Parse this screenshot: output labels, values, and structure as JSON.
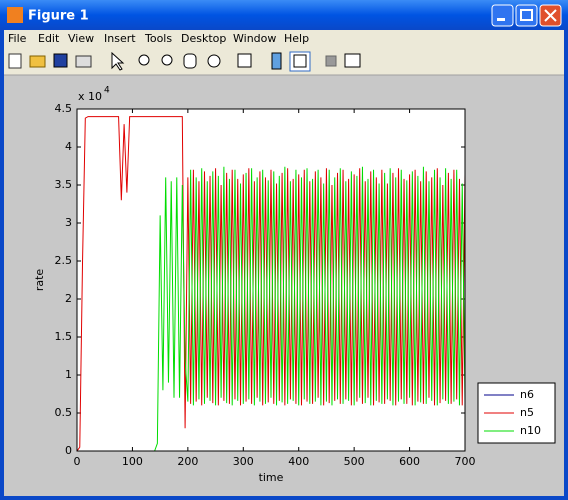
{
  "window": {
    "title": "Figure 1"
  },
  "menu": [
    "File",
    "Edit",
    "View",
    "Insert",
    "Tools",
    "Desktop",
    "Window",
    "Help"
  ],
  "chart_data": {
    "type": "line",
    "xlabel": "time",
    "ylabel": "rate",
    "y_multiplier": {
      "base": "x 10",
      "exponent": "4"
    },
    "xlim": [
      0,
      700
    ],
    "xticks": [
      0,
      100,
      200,
      300,
      400,
      500,
      600,
      700
    ],
    "ylim": [
      0,
      4.5
    ],
    "yticks": [
      0,
      0.5,
      1,
      1.5,
      2,
      2.5,
      3,
      3.5,
      4,
      4.5
    ],
    "legend": "lower right",
    "x": [
      0,
      5,
      10,
      15,
      20,
      25,
      30,
      35,
      40,
      45,
      50,
      55,
      60,
      65,
      70,
      75,
      80,
      85,
      90,
      95,
      100,
      105,
      110,
      115,
      120,
      125,
      130,
      135,
      140,
      145,
      150,
      155,
      160,
      165,
      170,
      175,
      180,
      185,
      190,
      195,
      200,
      205,
      210,
      215,
      220,
      225,
      230,
      235,
      240,
      245,
      250,
      255,
      260,
      265,
      270,
      275,
      280,
      285,
      290,
      295,
      300,
      305,
      310,
      315,
      320,
      325,
      330,
      335,
      340,
      345,
      350,
      355,
      360,
      365,
      370,
      375,
      380,
      385,
      390,
      395,
      400,
      405,
      410,
      415,
      420,
      425,
      430,
      435,
      440,
      445,
      450,
      455,
      460,
      465,
      470,
      475,
      480,
      485,
      490,
      495,
      500,
      505,
      510,
      515,
      520,
      525,
      530,
      535,
      540,
      545,
      550,
      555,
      560,
      565,
      570,
      575,
      580,
      585,
      590,
      595,
      600,
      605,
      610,
      615,
      620,
      625,
      630,
      635,
      640,
      645,
      650,
      655,
      660,
      665,
      670,
      675,
      680,
      685,
      690,
      695,
      700
    ],
    "series": [
      {
        "name": "n6",
        "color": "#00008b",
        "values": [
          0,
          0,
          0,
          0,
          0,
          0,
          0,
          0,
          0,
          0,
          0,
          0,
          0,
          0,
          0,
          0,
          0,
          0,
          0,
          0,
          0,
          0,
          0,
          0,
          0,
          0,
          0,
          0,
          0,
          0,
          0,
          0,
          0,
          0,
          0,
          0,
          0,
          0,
          0,
          0,
          0,
          0,
          0,
          0,
          0,
          0,
          0,
          0,
          0,
          0,
          0,
          0,
          0,
          0,
          0,
          0,
          0,
          0,
          0,
          0,
          0,
          0,
          0,
          0,
          0,
          0,
          0,
          0,
          0,
          0,
          0,
          0,
          0,
          0,
          0,
          0,
          0,
          0,
          0,
          0,
          0,
          0,
          0,
          0,
          0,
          0,
          0,
          0,
          0,
          0,
          0,
          0,
          0,
          0,
          0,
          0,
          0,
          0,
          0,
          0,
          0,
          0,
          0,
          0,
          0,
          0,
          0,
          0,
          0,
          0,
          0,
          0,
          0,
          0,
          0,
          0,
          0,
          0,
          0,
          0,
          0,
          0,
          0,
          0,
          0,
          0,
          0,
          0,
          0,
          0,
          0,
          0,
          0,
          0,
          0,
          0,
          0,
          0,
          0,
          0,
          0
        ]
      },
      {
        "name": "n5",
        "color": "#e00000",
        "values": [
          0,
          0.05,
          2.5,
          4.38,
          4.4,
          4.4,
          4.4,
          4.4,
          4.4,
          4.4,
          4.4,
          4.4,
          4.4,
          4.4,
          4.4,
          4.4,
          3.3,
          4.3,
          3.4,
          4.4,
          4.4,
          4.4,
          4.4,
          4.4,
          4.4,
          4.4,
          4.4,
          4.4,
          4.4,
          4.4,
          4.4,
          4.4,
          4.4,
          4.4,
          4.4,
          4.4,
          4.4,
          4.4,
          4.4,
          0.3,
          3.6,
          0.62,
          3.7,
          0.65,
          3.55,
          0.6,
          3.68,
          0.7,
          3.62,
          0.63,
          3.72,
          0.6,
          3.5,
          0.66,
          3.66,
          0.62,
          3.7,
          0.68,
          3.58,
          0.6,
          3.64,
          0.65,
          3.72,
          0.62,
          3.55,
          0.7,
          3.68,
          0.6,
          3.6,
          0.64,
          3.7,
          0.62,
          3.52,
          0.66,
          3.66,
          0.6,
          3.72,
          0.68,
          3.58,
          0.62,
          3.64,
          0.6,
          3.7,
          0.65,
          3.55,
          0.62,
          3.68,
          0.7,
          3.6,
          0.6,
          3.72,
          0.63,
          3.5,
          0.66,
          3.66,
          0.62,
          3.7,
          0.68,
          3.58,
          0.6,
          3.64,
          0.65,
          3.72,
          0.62,
          3.55,
          0.7,
          3.68,
          0.6,
          3.6,
          0.64,
          3.7,
          0.62,
          3.52,
          0.66,
          3.66,
          0.6,
          3.72,
          0.68,
          3.58,
          0.62,
          3.64,
          0.6,
          3.7,
          0.65,
          3.55,
          0.62,
          3.68,
          0.7,
          3.6,
          0.6,
          3.72,
          0.63,
          3.5,
          0.66,
          3.66,
          0.62,
          3.7,
          0.68,
          3.58,
          0.6,
          3.64
        ]
      },
      {
        "name": "n10",
        "color": "#00dd00",
        "values": [
          0,
          0,
          0,
          0,
          0,
          0,
          0,
          0,
          0,
          0,
          0,
          0,
          0,
          0,
          0,
          0,
          0,
          0,
          0,
          0,
          0,
          0,
          0,
          0,
          0,
          0,
          0,
          0,
          0,
          0.1,
          3.1,
          0.8,
          3.6,
          0.9,
          3.55,
          0.7,
          3.6,
          0.7,
          3.5,
          1.2,
          0.65,
          3.7,
          0.6,
          3.6,
          0.68,
          3.72,
          0.62,
          3.55,
          0.66,
          3.68,
          0.6,
          3.62,
          0.7,
          3.74,
          0.63,
          3.58,
          0.6,
          3.7,
          0.66,
          3.52,
          0.62,
          3.66,
          0.68,
          3.72,
          0.6,
          3.6,
          0.65,
          3.7,
          0.62,
          3.56,
          0.7,
          3.68,
          0.6,
          3.62,
          0.64,
          3.74,
          0.62,
          3.55,
          0.66,
          3.7,
          0.6,
          3.6,
          0.68,
          3.72,
          0.62,
          3.58,
          0.65,
          3.7,
          0.6,
          3.52,
          0.65,
          3.7,
          0.6,
          3.6,
          0.68,
          3.72,
          0.62,
          3.55,
          0.66,
          3.68,
          0.6,
          3.62,
          0.7,
          3.74,
          0.63,
          3.58,
          0.6,
          3.7,
          0.66,
          3.52,
          0.62,
          3.66,
          0.68,
          3.72,
          0.6,
          3.6,
          0.65,
          3.7,
          0.62,
          3.56,
          0.7,
          3.68,
          0.6,
          3.62,
          0.64,
          3.74,
          0.62,
          3.55,
          0.66,
          3.7,
          0.6,
          3.6,
          0.68,
          3.72,
          0.62,
          3.58,
          0.65,
          3.7,
          0.6,
          3.52,
          0.65
        ]
      }
    ]
  }
}
